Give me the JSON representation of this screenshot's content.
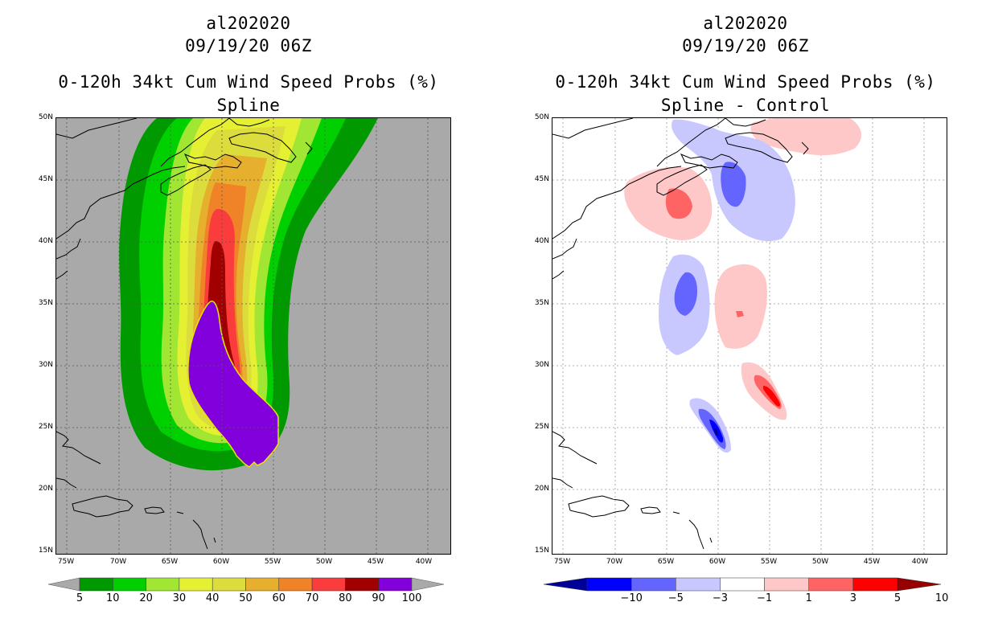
{
  "left_panel": {
    "storm_id": "al202020",
    "datetime": "09/19/20 06Z",
    "product": "0-120h 34kt Cum Wind Speed Probs (%)",
    "subtitle": "Spline",
    "colorbar": {
      "labels": [
        "5",
        "10",
        "20",
        "30",
        "40",
        "50",
        "60",
        "70",
        "80",
        "90",
        "100"
      ],
      "colors": [
        "#009a00",
        "#00d000",
        "#a0e632",
        "#e6f032",
        "#dcdc3c",
        "#e6af2d",
        "#f08228",
        "#fa3c3c",
        "#a00000",
        "#8200dc"
      ]
    }
  },
  "right_panel": {
    "storm_id": "al202020",
    "datetime": "09/19/20 06Z",
    "product": "0-120h 34kt Cum Wind Speed Probs (%)",
    "subtitle": "Spline - Control",
    "colorbar": {
      "labels": [
        "−10",
        "−5",
        "−3",
        "−1",
        "1",
        "3",
        "5",
        "10"
      ],
      "colors": [
        "#000096",
        "#0000ff",
        "#6464ff",
        "#c8c8ff",
        "#ffffff",
        "#ffc8c8",
        "#ff6464",
        "#ff0000",
        "#960000"
      ]
    }
  },
  "axes": {
    "lat_labels": [
      "50N",
      "45N",
      "40N",
      "35N",
      "30N",
      "25N",
      "20N",
      "15N"
    ],
    "lon_labels": [
      "75W",
      "70W",
      "65W",
      "60W",
      "55W",
      "50W",
      "45W",
      "40W"
    ]
  }
}
